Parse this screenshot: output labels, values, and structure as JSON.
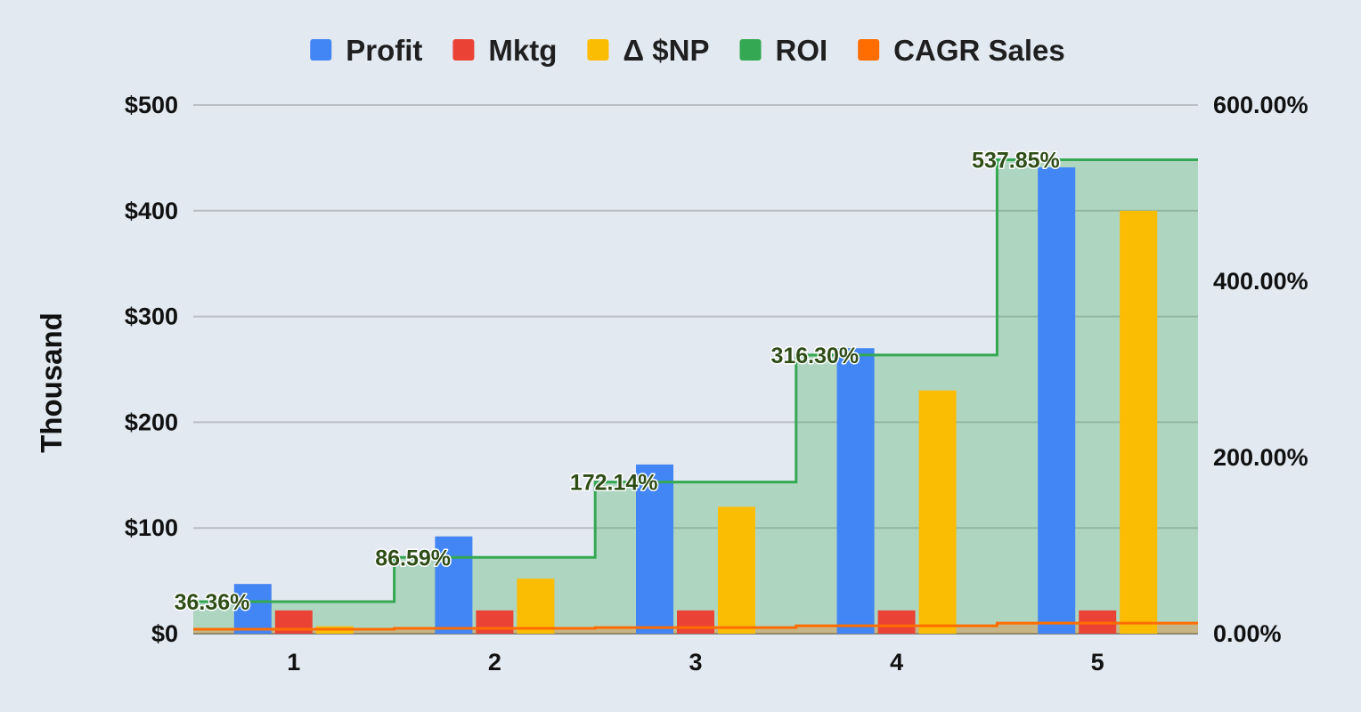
{
  "chart_data": {
    "type": "bar",
    "categories": [
      "1",
      "2",
      "3",
      "4",
      "5"
    ],
    "series": [
      {
        "name": "Profit",
        "type": "bar",
        "axis": "left",
        "color": "#4285f4",
        "values": [
          47,
          92,
          160,
          270,
          441
        ]
      },
      {
        "name": "Mktg",
        "type": "bar",
        "axis": "left",
        "color": "#ea4335",
        "values": [
          22,
          22,
          22,
          22,
          22
        ]
      },
      {
        "name": "Δ $NP",
        "type": "bar",
        "axis": "left",
        "color": "#fbbc04",
        "values": [
          7,
          52,
          120,
          230,
          400
        ]
      },
      {
        "name": "ROI",
        "type": "stepped-area",
        "axis": "right",
        "color": "#34a853",
        "values": [
          36.36,
          86.59,
          172.14,
          316.3,
          537.85
        ],
        "labels": [
          "36.36%",
          "86.59%",
          "172.14%",
          "316.30%",
          "537.85%"
        ]
      },
      {
        "name": "CAGR Sales",
        "type": "stepped-area",
        "axis": "right",
        "color": "#ff6d01",
        "values": [
          5,
          6,
          7,
          9,
          12
        ]
      }
    ],
    "ylabel": "Thousand",
    "ylim": [
      0,
      500
    ],
    "y_ticks": [
      "$0",
      "$100",
      "$200",
      "$300",
      "$400",
      "$500"
    ],
    "y2lim": [
      0,
      600
    ],
    "y2_ticks": [
      "0.00%",
      "200.00%",
      "400.00%",
      "600.00%"
    ],
    "legend_position": "top",
    "grid": true
  }
}
